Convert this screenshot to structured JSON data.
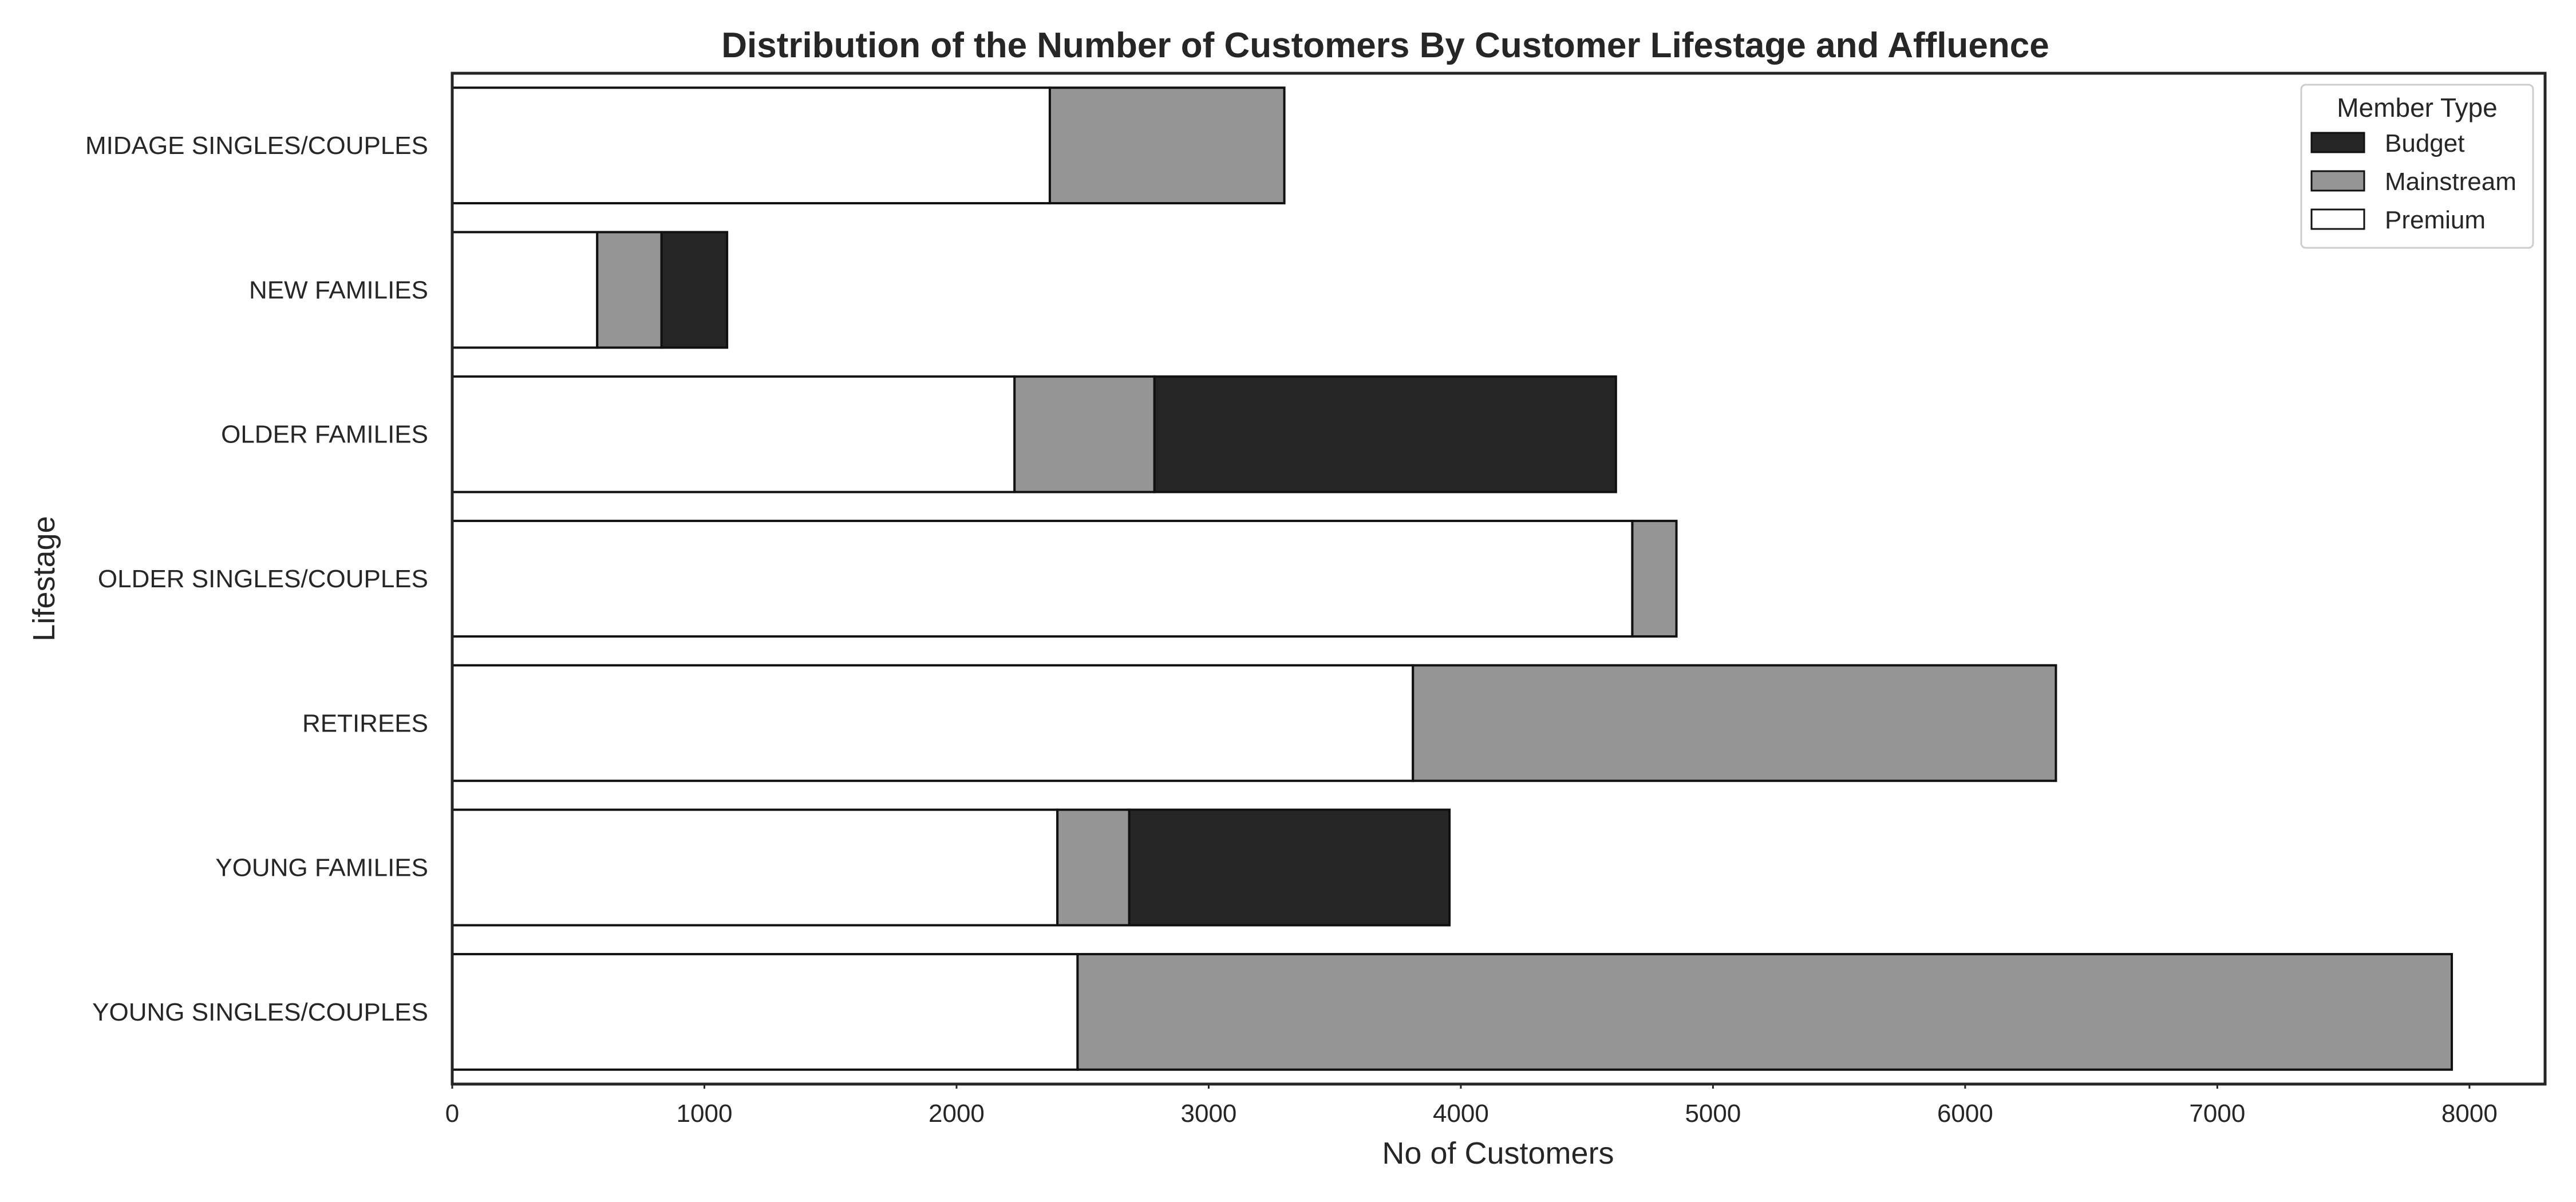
{
  "chart_data": {
    "type": "bar",
    "orientation": "horizontal",
    "stacked": true,
    "title": "Distribution of the Number of Customers By Customer Lifestage and Affluence",
    "xlabel": "No of Customers",
    "ylabel": "Lifestage",
    "xlim": [
      0,
      8300
    ],
    "xticks": [
      0,
      1000,
      2000,
      3000,
      4000,
      5000,
      6000,
      7000,
      8000
    ],
    "grid": false,
    "legend": {
      "title": "Member Type",
      "position": "top-right"
    },
    "categories": [
      "MIDAGE SINGLES/COUPLES",
      "NEW FAMILIES",
      "OLDER FAMILIES",
      "OLDER SINGLES/COUPLES",
      "RETIREES",
      "YOUNG FAMILIES",
      "YOUNG SINGLES/COUPLES"
    ],
    "series": [
      {
        "name": "Premium",
        "color": "#ffffff",
        "values": [
          2370,
          575,
          2230,
          4680,
          3810,
          2400,
          2480
        ]
      },
      {
        "name": "Mainstream",
        "color": "#959595",
        "values": [
          930,
          255,
          555,
          175,
          2550,
          285,
          5450
        ]
      },
      {
        "name": "Budget",
        "color": "#262626",
        "values": [
          0,
          260,
          1830,
          0,
          0,
          1270,
          0
        ]
      }
    ]
  }
}
